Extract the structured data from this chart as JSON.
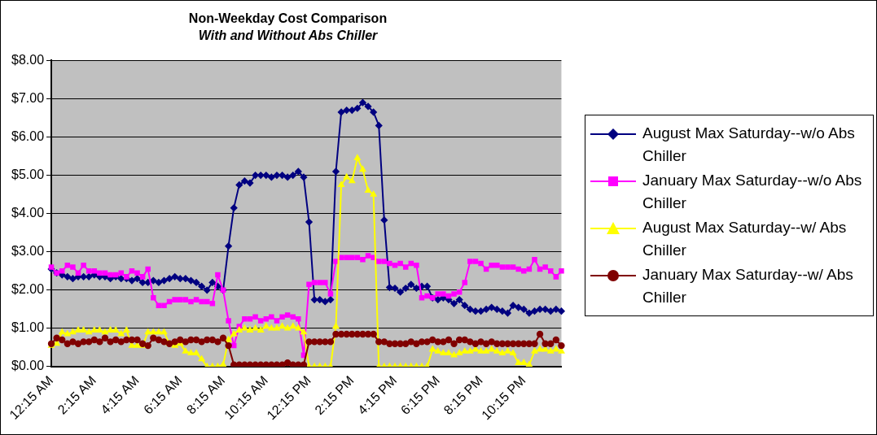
{
  "chart_data": {
    "type": "line",
    "title": "Non-Weekday Cost Comparison",
    "subtitle": "With and Without Abs Chiller",
    "categories": [
      "12:15 AM",
      null,
      null,
      null,
      null,
      null,
      null,
      null,
      "2:15 AM",
      null,
      null,
      null,
      null,
      null,
      null,
      null,
      "4:15 AM",
      null,
      null,
      null,
      null,
      null,
      null,
      null,
      "6:15 AM",
      null,
      null,
      null,
      null,
      null,
      null,
      null,
      "8:15 AM",
      null,
      null,
      null,
      null,
      null,
      null,
      null,
      "10:15 AM",
      null,
      null,
      null,
      null,
      null,
      null,
      null,
      "12:15 PM",
      null,
      null,
      null,
      null,
      null,
      null,
      null,
      "2:15 PM",
      null,
      null,
      null,
      null,
      null,
      null,
      null,
      "4:15 PM",
      null,
      null,
      null,
      null,
      null,
      null,
      null,
      "6:15 PM",
      null,
      null,
      null,
      null,
      null,
      null,
      null,
      "8:15 PM",
      null,
      null,
      null,
      null,
      null,
      null,
      null,
      "10:15 PM",
      null,
      null,
      null,
      null,
      null,
      null,
      null
    ],
    "series": [
      {
        "name": "August Max Saturday--w/o Abs Chiller",
        "color": "#000080",
        "marker": "diamond",
        "values": [
          2.55,
          2.45,
          2.4,
          2.35,
          2.3,
          2.35,
          2.35,
          2.35,
          2.4,
          2.35,
          2.35,
          2.3,
          2.35,
          2.3,
          2.3,
          2.25,
          2.3,
          2.2,
          2.2,
          2.25,
          2.2,
          2.25,
          2.3,
          2.35,
          2.3,
          2.3,
          2.25,
          2.2,
          2.1,
          2.0,
          2.2,
          2.1,
          2.0,
          3.15,
          4.15,
          4.75,
          4.85,
          4.8,
          5.0,
          5.0,
          5.0,
          4.95,
          5.0,
          5.0,
          4.95,
          5.0,
          5.1,
          4.95,
          3.78,
          1.75,
          1.75,
          1.7,
          1.75,
          5.1,
          6.65,
          6.7,
          6.7,
          6.75,
          6.9,
          6.8,
          6.65,
          6.3,
          3.83,
          2.07,
          2.05,
          1.95,
          2.05,
          2.15,
          2.05,
          2.1,
          2.1,
          1.8,
          1.75,
          1.8,
          1.75,
          1.65,
          1.75,
          1.6,
          1.5,
          1.45,
          1.45,
          1.5,
          1.55,
          1.5,
          1.45,
          1.4,
          1.6,
          1.55,
          1.5,
          1.4,
          1.45,
          1.5,
          1.5,
          1.45,
          1.5,
          1.45
        ]
      },
      {
        "name": "January Max Saturday--w/o Abs Chiller",
        "color": "#ff00ff",
        "marker": "square",
        "values": [
          2.6,
          2.45,
          2.5,
          2.65,
          2.6,
          2.45,
          2.65,
          2.5,
          2.5,
          2.45,
          2.45,
          2.4,
          2.4,
          2.45,
          2.35,
          2.5,
          2.45,
          2.35,
          2.55,
          1.8,
          1.6,
          1.6,
          1.7,
          1.75,
          1.75,
          1.75,
          1.7,
          1.75,
          1.7,
          1.7,
          1.65,
          2.4,
          2.0,
          1.2,
          0.55,
          1.05,
          1.25,
          1.25,
          1.3,
          1.2,
          1.25,
          1.3,
          1.2,
          1.3,
          1.35,
          1.3,
          1.25,
          0.3,
          2.15,
          2.2,
          2.2,
          2.2,
          1.9,
          2.75,
          2.85,
          2.85,
          2.85,
          2.85,
          2.8,
          2.9,
          2.85,
          2.75,
          2.75,
          2.7,
          2.65,
          2.7,
          2.6,
          2.7,
          2.65,
          1.8,
          1.85,
          1.8,
          1.9,
          1.9,
          1.85,
          1.9,
          1.95,
          2.2,
          2.75,
          2.75,
          2.7,
          2.55,
          2.65,
          2.65,
          2.6,
          2.6,
          2.6,
          2.55,
          2.5,
          2.55,
          2.8,
          2.55,
          2.6,
          2.5,
          2.35,
          2.5
        ]
      },
      {
        "name": "August Max Saturday--w/ Abs Chiller",
        "color": "#ffff00",
        "marker": "triangle",
        "values": [
          0.55,
          0.6,
          0.9,
          0.85,
          0.9,
          0.95,
          0.95,
          0.9,
          0.95,
          0.95,
          0.9,
          0.95,
          0.95,
          0.85,
          0.95,
          0.55,
          0.55,
          0.55,
          0.9,
          0.9,
          0.9,
          0.9,
          0.6,
          0.55,
          0.6,
          0.4,
          0.35,
          0.35,
          0.2,
          0,
          0,
          0,
          0.05,
          0.7,
          0.85,
          0.95,
          1.0,
          0.95,
          1.0,
          0.95,
          1.05,
          1.0,
          1.0,
          1.05,
          1.0,
          1.05,
          1.0,
          0.9,
          0,
          0,
          0,
          0,
          0,
          1.05,
          4.75,
          4.95,
          4.85,
          5.45,
          5.15,
          4.6,
          4.5,
          0,
          0,
          0,
          0,
          0,
          0,
          0,
          0,
          0,
          0,
          0.45,
          0.4,
          0.35,
          0.35,
          0.3,
          0.35,
          0.4,
          0.4,
          0.45,
          0.4,
          0.4,
          0.45,
          0.4,
          0.35,
          0.4,
          0.35,
          0.1,
          0.1,
          0.05,
          0.4,
          0.45,
          0.45,
          0.4,
          0.45,
          0.4
        ]
      },
      {
        "name": "January Max Saturday--w/ Abs Chiller",
        "color": "#800000",
        "marker": "circle",
        "values": [
          0.6,
          0.75,
          0.7,
          0.6,
          0.65,
          0.6,
          0.65,
          0.65,
          0.7,
          0.65,
          0.75,
          0.65,
          0.7,
          0.65,
          0.7,
          0.7,
          0.7,
          0.6,
          0.55,
          0.75,
          0.7,
          0.65,
          0.6,
          0.65,
          0.7,
          0.65,
          0.7,
          0.7,
          0.65,
          0.7,
          0.7,
          0.65,
          0.75,
          0.55,
          0.05,
          0.05,
          0.05,
          0.05,
          0.05,
          0.05,
          0.05,
          0.05,
          0.05,
          0.05,
          0.1,
          0.05,
          0.05,
          0.05,
          0.65,
          0.65,
          0.65,
          0.65,
          0.65,
          0.85,
          0.85,
          0.85,
          0.85,
          0.85,
          0.85,
          0.85,
          0.85,
          0.65,
          0.65,
          0.6,
          0.6,
          0.6,
          0.6,
          0.65,
          0.6,
          0.65,
          0.65,
          0.7,
          0.65,
          0.65,
          0.7,
          0.6,
          0.7,
          0.7,
          0.65,
          0.6,
          0.65,
          0.6,
          0.65,
          0.6,
          0.6,
          0.6,
          0.6,
          0.6,
          0.6,
          0.6,
          0.6,
          0.85,
          0.6,
          0.6,
          0.7,
          0.55
        ]
      }
    ],
    "ylim": [
      0,
      8
    ],
    "yticks": [
      {
        "value": 0,
        "label": "$0.00"
      },
      {
        "value": 1,
        "label": "$1.00"
      },
      {
        "value": 2,
        "label": "$2.00"
      },
      {
        "value": 3,
        "label": "$3.00"
      },
      {
        "value": 4,
        "label": "$4.00"
      },
      {
        "value": 5,
        "label": "$5.00"
      },
      {
        "value": 6,
        "label": "$6.00"
      },
      {
        "value": 7,
        "label": "$7.00"
      },
      {
        "value": 8,
        "label": "$8.00"
      }
    ],
    "grid": "y",
    "legend": "right",
    "line_style": "solid"
  }
}
